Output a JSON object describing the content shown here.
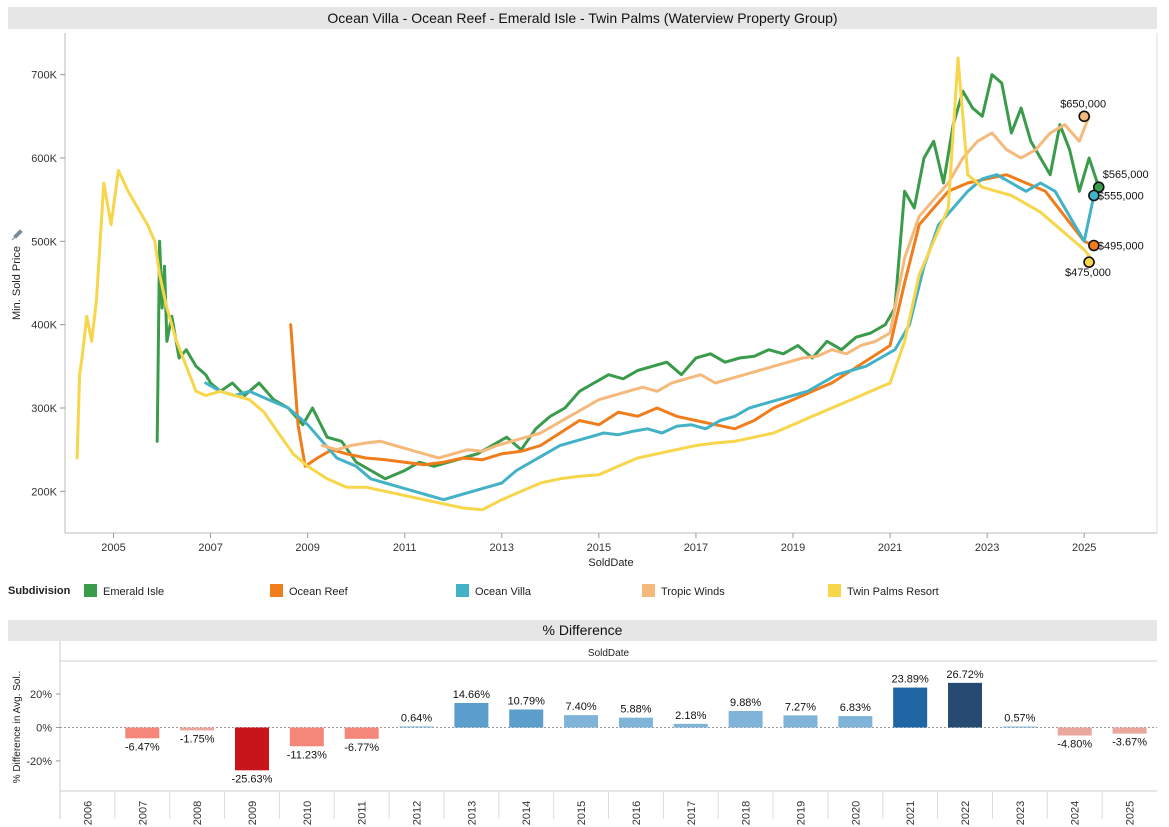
{
  "title": "Ocean Villa - Ocean Reef - Emerald Isle - Twin Palms (Waterview Property Group)",
  "legend": {
    "title": "Subdivision",
    "items": [
      {
        "label": "Emerald Isle",
        "color": "#3a9b4b"
      },
      {
        "label": "Ocean Reef",
        "color": "#f07d1c"
      },
      {
        "label": "Ocean Villa",
        "color": "#43b2c6"
      },
      {
        "label": "Tropic Winds",
        "color": "#f5b97c"
      },
      {
        "label": "Twin Palms Resort",
        "color": "#f7d64b"
      }
    ]
  },
  "pct_title": "% Difference",
  "chart_data": [
    {
      "type": "line",
      "title": "Ocean Villa - Ocean Reef - Emerald Isle - Twin Palms (Waterview Property Group)",
      "xlabel": "SoldDate",
      "ylabel": "Min. Sold Price",
      "xlim": [
        2004,
        2026.5
      ],
      "ylim": [
        150000,
        750000
      ],
      "x_ticks": [
        "2005",
        "2007",
        "2009",
        "2011",
        "2013",
        "2015",
        "2017",
        "2019",
        "2021",
        "2023",
        "2025"
      ],
      "y_ticks": [
        "200K",
        "300K",
        "400K",
        "500K",
        "600K",
        "700K"
      ],
      "grid": false,
      "series": [
        {
          "name": "Emerald Isle",
          "color": "#3a9b4b",
          "x": [
            2005.9,
            2005.95,
            2006.0,
            2006.05,
            2006.1,
            2006.2,
            2006.35,
            2006.5,
            2006.7,
            2006.9,
            2007.0,
            2007.2,
            2007.45,
            2007.7,
            2008.0,
            2008.3,
            2008.6,
            2008.9,
            2009.1,
            2009.4,
            2009.7,
            2010.0,
            2010.3,
            2010.6,
            2011.0,
            2011.3,
            2011.6,
            2011.9,
            2012.2,
            2012.5,
            2012.8,
            2013.1,
            2013.4,
            2013.7,
            2014.0,
            2014.3,
            2014.6,
            2014.9,
            2015.2,
            2015.5,
            2015.8,
            2016.1,
            2016.4,
            2016.7,
            2017.0,
            2017.3,
            2017.6,
            2017.9,
            2018.2,
            2018.5,
            2018.8,
            2019.1,
            2019.4,
            2019.7,
            2020.0,
            2020.3,
            2020.6,
            2020.9,
            2021.1,
            2021.3,
            2021.5,
            2021.7,
            2021.9,
            2022.1,
            2022.3,
            2022.5,
            2022.7,
            2022.9,
            2023.1,
            2023.3,
            2023.5,
            2023.7,
            2023.9,
            2024.1,
            2024.3,
            2024.5,
            2024.7,
            2024.9,
            2025.1,
            2025.3
          ],
          "y": [
            260000,
            500000,
            420000,
            470000,
            380000,
            410000,
            360000,
            370000,
            350000,
            340000,
            330000,
            320000,
            330000,
            315000,
            330000,
            310000,
            300000,
            280000,
            300000,
            265000,
            260000,
            235000,
            225000,
            215000,
            225000,
            235000,
            230000,
            235000,
            240000,
            245000,
            255000,
            265000,
            250000,
            275000,
            290000,
            300000,
            320000,
            330000,
            340000,
            335000,
            345000,
            350000,
            355000,
            340000,
            360000,
            365000,
            355000,
            360000,
            362000,
            370000,
            365000,
            375000,
            360000,
            380000,
            370000,
            385000,
            390000,
            400000,
            420000,
            560000,
            540000,
            600000,
            620000,
            570000,
            640000,
            680000,
            660000,
            650000,
            700000,
            690000,
            630000,
            660000,
            620000,
            600000,
            580000,
            640000,
            610000,
            560000,
            600000,
            565000
          ]
        },
        {
          "name": "Ocean Reef",
          "color": "#f07d1c",
          "x": [
            2008.65,
            2008.8,
            2008.95,
            2009.2,
            2009.5,
            2009.8,
            2010.2,
            2010.6,
            2011.0,
            2011.4,
            2011.8,
            2012.2,
            2012.6,
            2013.0,
            2013.4,
            2013.8,
            2014.2,
            2014.6,
            2015.0,
            2015.4,
            2015.8,
            2016.2,
            2016.6,
            2017.0,
            2017.4,
            2017.8,
            2018.2,
            2018.6,
            2019.0,
            2019.4,
            2019.8,
            2020.2,
            2020.6,
            2021.0,
            2021.3,
            2021.6,
            2021.9,
            2022.2,
            2022.6,
            2023.0,
            2023.4,
            2023.8,
            2024.2,
            2024.6,
            2025.0,
            2025.2
          ],
          "y": [
            400000,
            280000,
            230000,
            240000,
            250000,
            245000,
            240000,
            238000,
            235000,
            232000,
            235000,
            240000,
            238000,
            245000,
            248000,
            255000,
            270000,
            285000,
            280000,
            295000,
            290000,
            300000,
            290000,
            285000,
            280000,
            275000,
            285000,
            300000,
            310000,
            320000,
            330000,
            345000,
            360000,
            375000,
            450000,
            520000,
            540000,
            560000,
            570000,
            575000,
            580000,
            570000,
            560000,
            530000,
            500000,
            495000
          ]
        },
        {
          "name": "Ocean Villa",
          "color": "#43b2c6",
          "x": [
            2006.9,
            2007.2,
            2007.5,
            2007.8,
            2008.2,
            2008.6,
            2009.0,
            2009.3,
            2009.6,
            2010.0,
            2010.3,
            2010.6,
            2010.9,
            2011.2,
            2011.5,
            2011.8,
            2012.1,
            2012.4,
            2012.7,
            2013.0,
            2013.3,
            2013.6,
            2013.9,
            2014.2,
            2014.5,
            2014.8,
            2015.1,
            2015.4,
            2015.7,
            2016.0,
            2016.3,
            2016.6,
            2016.9,
            2017.2,
            2017.5,
            2017.8,
            2018.1,
            2018.4,
            2018.7,
            2019.0,
            2019.3,
            2019.6,
            2019.9,
            2020.2,
            2020.5,
            2020.8,
            2021.1,
            2021.4,
            2021.7,
            2022.0,
            2022.3,
            2022.6,
            2022.9,
            2023.2,
            2023.5,
            2023.8,
            2024.1,
            2024.4,
            2024.7,
            2025.0,
            2025.2
          ],
          "y": [
            330000,
            320000,
            315000,
            320000,
            310000,
            300000,
            280000,
            260000,
            240000,
            230000,
            215000,
            210000,
            205000,
            200000,
            195000,
            190000,
            195000,
            200000,
            205000,
            210000,
            225000,
            235000,
            245000,
            255000,
            260000,
            265000,
            270000,
            268000,
            272000,
            275000,
            270000,
            278000,
            280000,
            275000,
            285000,
            290000,
            300000,
            305000,
            310000,
            315000,
            320000,
            330000,
            340000,
            345000,
            350000,
            360000,
            370000,
            400000,
            470000,
            520000,
            540000,
            560000,
            575000,
            580000,
            570000,
            560000,
            570000,
            560000,
            530000,
            500000,
            555000
          ]
        },
        {
          "name": "Tropic Winds",
          "color": "#f5b97c",
          "x": [
            2009.3,
            2009.6,
            2009.9,
            2010.2,
            2010.5,
            2010.8,
            2011.1,
            2011.4,
            2011.7,
            2012.0,
            2012.3,
            2012.6,
            2012.9,
            2013.2,
            2013.5,
            2013.8,
            2014.1,
            2014.4,
            2014.7,
            2015.0,
            2015.3,
            2015.6,
            2015.9,
            2016.2,
            2016.5,
            2016.8,
            2017.1,
            2017.4,
            2017.7,
            2018.0,
            2018.3,
            2018.6,
            2018.9,
            2019.2,
            2019.5,
            2019.8,
            2020.1,
            2020.4,
            2020.7,
            2021.0,
            2021.3,
            2021.6,
            2021.9,
            2022.2,
            2022.5,
            2022.8,
            2023.1,
            2023.4,
            2023.7,
            2024.0,
            2024.3,
            2024.6,
            2024.9,
            2025.1
          ],
          "y": [
            255000,
            250000,
            255000,
            258000,
            260000,
            255000,
            250000,
            245000,
            240000,
            245000,
            250000,
            248000,
            255000,
            260000,
            265000,
            270000,
            280000,
            290000,
            300000,
            310000,
            315000,
            320000,
            325000,
            320000,
            330000,
            335000,
            340000,
            330000,
            335000,
            340000,
            345000,
            350000,
            355000,
            360000,
            362000,
            370000,
            365000,
            375000,
            380000,
            390000,
            480000,
            530000,
            550000,
            570000,
            600000,
            620000,
            630000,
            610000,
            600000,
            610000,
            630000,
            640000,
            620000,
            650000
          ]
        },
        {
          "name": "Twin Palms Resort",
          "color": "#f7d64b",
          "x": [
            2004.25,
            2004.3,
            2004.35,
            2004.45,
            2004.55,
            2004.65,
            2004.8,
            2004.95,
            2005.1,
            2005.3,
            2005.5,
            2005.7,
            2005.85,
            2005.95,
            2006.1,
            2006.3,
            2006.5,
            2006.7,
            2006.9,
            2007.2,
            2007.5,
            2007.8,
            2008.1,
            2008.4,
            2008.7,
            2009.0,
            2009.4,
            2009.8,
            2010.2,
            2010.6,
            2011.0,
            2011.4,
            2011.8,
            2012.2,
            2012.6,
            2013.0,
            2013.4,
            2013.8,
            2014.2,
            2014.6,
            2015.0,
            2015.4,
            2015.8,
            2016.2,
            2016.6,
            2017.0,
            2017.4,
            2017.8,
            2018.2,
            2018.6,
            2019.0,
            2019.4,
            2019.8,
            2020.2,
            2020.6,
            2021.0,
            2021.3,
            2021.6,
            2021.9,
            2022.2,
            2022.4,
            2022.6,
            2022.9,
            2023.2,
            2023.5,
            2023.8,
            2024.1,
            2024.4,
            2024.7,
            2025.0,
            2025.2
          ],
          "y": [
            240000,
            340000,
            360000,
            410000,
            380000,
            430000,
            570000,
            520000,
            585000,
            560000,
            540000,
            520000,
            500000,
            460000,
            420000,
            380000,
            350000,
            320000,
            315000,
            320000,
            315000,
            310000,
            295000,
            270000,
            245000,
            230000,
            215000,
            205000,
            205000,
            200000,
            195000,
            190000,
            185000,
            180000,
            178000,
            190000,
            200000,
            210000,
            215000,
            218000,
            220000,
            230000,
            240000,
            245000,
            250000,
            255000,
            258000,
            260000,
            265000,
            270000,
            280000,
            290000,
            300000,
            310000,
            320000,
            330000,
            380000,
            460000,
            500000,
            540000,
            720000,
            580000,
            565000,
            560000,
            555000,
            545000,
            535000,
            520000,
            505000,
            490000,
            475000
          ]
        }
      ],
      "annotations": [
        {
          "label": "$650,000",
          "x": 2025.0,
          "y": 650000
        },
        {
          "label": "$565,000",
          "x": 2025.3,
          "y": 565000
        },
        {
          "label": "$555,000",
          "x": 2025.2,
          "y": 555000
        },
        {
          "label": "$495,000",
          "x": 2025.2,
          "y": 495000
        },
        {
          "label": "$475,000",
          "x": 2025.1,
          "y": 475000
        }
      ]
    },
    {
      "type": "bar",
      "title": "% Difference",
      "xlabel": "SoldDate",
      "ylabel": "% Difference in Avg. Sol..",
      "ylim": [
        -38,
        38
      ],
      "y_ticks": [
        "20%",
        "0%",
        "-20%"
      ],
      "categories": [
        "2006",
        "2007",
        "2008",
        "2009",
        "2010",
        "2011",
        "2012",
        "2013",
        "2014",
        "2015",
        "2016",
        "2017",
        "2018",
        "2019",
        "2020",
        "2021",
        "2022",
        "2023",
        "2024",
        "2025"
      ],
      "values": [
        null,
        -6.47,
        -1.75,
        -25.63,
        -11.23,
        -6.77,
        0.64,
        14.66,
        10.79,
        7.4,
        5.88,
        2.18,
        9.88,
        7.27,
        6.83,
        23.89,
        26.72,
        0.57,
        -4.8,
        -3.67
      ],
      "labels": [
        "",
        "-6.47%",
        "-1.75%",
        "-25.63%",
        "-11.23%",
        "-6.77%",
        "0.64%",
        "14.66%",
        "10.79%",
        "7.40%",
        "5.88%",
        "2.18%",
        "9.88%",
        "7.27%",
        "6.83%",
        "23.89%",
        "26.72%",
        "0.57%",
        "-4.80%",
        "-3.67%"
      ]
    }
  ]
}
